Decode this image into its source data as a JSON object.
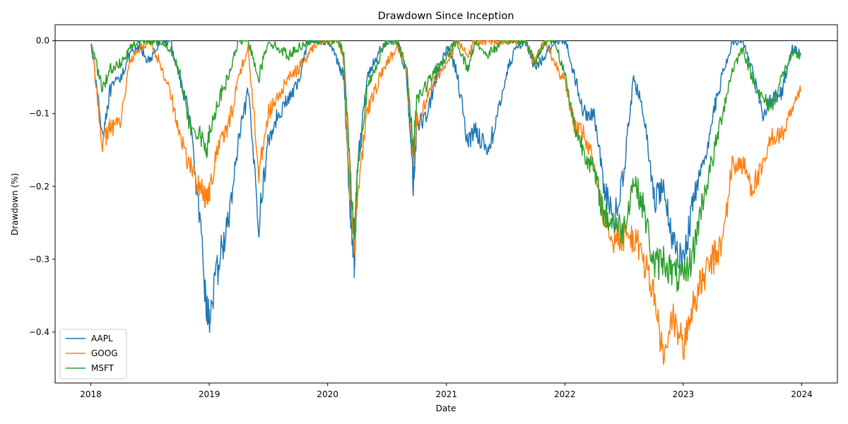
{
  "chart_data": {
    "type": "line",
    "title": "Drawdown Since Inception",
    "xlabel": "Date",
    "ylabel": "Drawdown (%)",
    "x_ticks": [
      "2018",
      "2019",
      "2020",
      "2021",
      "2022",
      "2023",
      "2024"
    ],
    "y_ticks": [
      "0.0",
      "−0.1",
      "−0.2",
      "−0.3",
      "−0.4"
    ],
    "xlim": [
      "2017-09-13",
      "2024-04-20"
    ],
    "ylim": [
      -0.47,
      0.022
    ],
    "reference_line": 0.0,
    "grid": false,
    "legend_position": "lower-left",
    "x": [
      "2018-01-02",
      "2018-02-06",
      "2018-03-01",
      "2018-04-02",
      "2018-05-01",
      "2018-06-01",
      "2018-07-02",
      "2018-08-01",
      "2018-09-04",
      "2018-10-01",
      "2018-11-01",
      "2018-12-03",
      "2018-12-24",
      "2019-01-03",
      "2019-02-01",
      "2019-03-01",
      "2019-04-01",
      "2019-05-01",
      "2019-06-03",
      "2019-07-01",
      "2019-08-01",
      "2019-09-03",
      "2019-10-01",
      "2019-11-01",
      "2019-12-02",
      "2020-01-02",
      "2020-02-03",
      "2020-02-20",
      "2020-03-09",
      "2020-03-23",
      "2020-04-01",
      "2020-05-01",
      "2020-06-01",
      "2020-07-01",
      "2020-08-03",
      "2020-09-01",
      "2020-09-21",
      "2020-10-01",
      "2020-11-02",
      "2020-12-01",
      "2021-01-04",
      "2021-02-01",
      "2021-03-08",
      "2021-04-01",
      "2021-05-03",
      "2021-06-01",
      "2021-07-01",
      "2021-08-02",
      "2021-09-01",
      "2021-10-01",
      "2021-11-01",
      "2021-12-01",
      "2022-01-03",
      "2022-02-01",
      "2022-03-01",
      "2022-04-01",
      "2022-05-02",
      "2022-06-01",
      "2022-07-01",
      "2022-08-01",
      "2022-09-01",
      "2022-10-03",
      "2022-11-01",
      "2022-12-01",
      "2023-01-03",
      "2023-02-01",
      "2023-03-01",
      "2023-04-03",
      "2023-05-01",
      "2023-06-01",
      "2023-07-03",
      "2023-08-01",
      "2023-09-01",
      "2023-10-02",
      "2023-11-01",
      "2023-12-01",
      "2023-12-29"
    ],
    "series": [
      {
        "name": "AAPL",
        "color": "#1f77b4",
        "values": [
          0.0,
          -0.13,
          -0.07,
          -0.05,
          -0.02,
          -0.01,
          -0.03,
          0.0,
          0.0,
          -0.05,
          -0.1,
          -0.25,
          -0.37,
          -0.38,
          -0.3,
          -0.25,
          -0.14,
          -0.07,
          -0.25,
          -0.14,
          -0.1,
          -0.08,
          -0.06,
          0.0,
          0.0,
          0.0,
          -0.03,
          -0.05,
          -0.22,
          -0.31,
          -0.18,
          -0.05,
          -0.02,
          0.0,
          0.0,
          -0.05,
          -0.2,
          -0.12,
          -0.1,
          -0.05,
          -0.01,
          -0.04,
          -0.14,
          -0.12,
          -0.15,
          -0.12,
          -0.05,
          -0.01,
          0.0,
          -0.04,
          -0.02,
          0.0,
          0.0,
          -0.05,
          -0.1,
          -0.1,
          -0.2,
          -0.25,
          -0.18,
          -0.05,
          -0.1,
          -0.22,
          -0.2,
          -0.28,
          -0.3,
          -0.22,
          -0.18,
          -0.1,
          -0.05,
          0.0,
          0.0,
          -0.04,
          -0.1,
          -0.08,
          -0.07,
          -0.01,
          -0.02
        ]
      },
      {
        "name": "GOOG",
        "color": "#ff7f0e",
        "values": [
          0.0,
          -0.14,
          -0.12,
          -0.11,
          -0.03,
          -0.01,
          0.0,
          -0.03,
          -0.07,
          -0.13,
          -0.17,
          -0.2,
          -0.22,
          -0.2,
          -0.14,
          -0.12,
          -0.05,
          -0.01,
          -0.18,
          -0.1,
          -0.08,
          -0.05,
          -0.04,
          -0.02,
          0.0,
          0.0,
          0.0,
          -0.03,
          -0.2,
          -0.28,
          -0.22,
          -0.1,
          -0.06,
          -0.03,
          -0.01,
          -0.04,
          -0.17,
          -0.11,
          -0.08,
          -0.05,
          -0.03,
          0.0,
          -0.02,
          0.0,
          0.0,
          0.0,
          0.0,
          0.0,
          0.0,
          -0.03,
          0.0,
          -0.03,
          -0.06,
          -0.12,
          -0.13,
          -0.17,
          -0.24,
          -0.27,
          -0.27,
          -0.27,
          -0.3,
          -0.35,
          -0.44,
          -0.38,
          -0.42,
          -0.36,
          -0.33,
          -0.3,
          -0.28,
          -0.17,
          -0.17,
          -0.2,
          -0.18,
          -0.13,
          -0.13,
          -0.1,
          -0.07
        ]
      },
      {
        "name": "MSFT",
        "color": "#2ca02c",
        "values": [
          0.0,
          -0.07,
          -0.04,
          -0.03,
          -0.01,
          0.0,
          0.0,
          0.0,
          -0.01,
          -0.04,
          -0.12,
          -0.13,
          -0.15,
          -0.12,
          -0.08,
          -0.05,
          0.0,
          0.0,
          -0.05,
          0.0,
          -0.01,
          -0.02,
          -0.01,
          0.0,
          0.0,
          0.0,
          0.0,
          -0.02,
          -0.17,
          -0.27,
          -0.18,
          -0.07,
          -0.03,
          0.0,
          0.0,
          -0.04,
          -0.15,
          -0.08,
          -0.06,
          -0.04,
          -0.02,
          0.0,
          -0.04,
          0.0,
          -0.02,
          -0.01,
          0.0,
          0.0,
          0.0,
          -0.03,
          0.0,
          0.0,
          -0.05,
          -0.12,
          -0.15,
          -0.18,
          -0.24,
          -0.25,
          -0.26,
          -0.19,
          -0.23,
          -0.31,
          -0.3,
          -0.32,
          -0.33,
          -0.29,
          -0.22,
          -0.16,
          -0.1,
          -0.04,
          -0.01,
          -0.05,
          -0.08,
          -0.09,
          -0.05,
          -0.02,
          -0.02
        ]
      }
    ]
  }
}
